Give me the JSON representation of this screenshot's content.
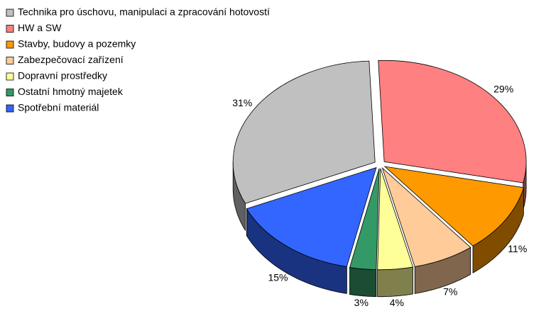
{
  "chart_data": {
    "type": "pie",
    "categories": [
      "Technika pro úschovu, manipulaci a zpracování hotovostí",
      "HW a SW",
      "Stavby, budovy a pozemky",
      "Zabezpečovací zařízení",
      "Dopravní prostředky",
      "Ostatní hmotný majetek",
      "Spotřební materiál"
    ],
    "values": [
      31,
      29,
      11,
      7,
      4,
      3,
      15
    ],
    "value_labels": [
      "31%",
      "29%",
      "11%",
      "7%",
      "4%",
      "3%",
      "15%"
    ],
    "colors": [
      "#c0c0c0",
      "#ff8080",
      "#ff9900",
      "#ffcc99",
      "#ffff99",
      "#339966",
      "#3366ff"
    ],
    "legend": "top-left"
  }
}
